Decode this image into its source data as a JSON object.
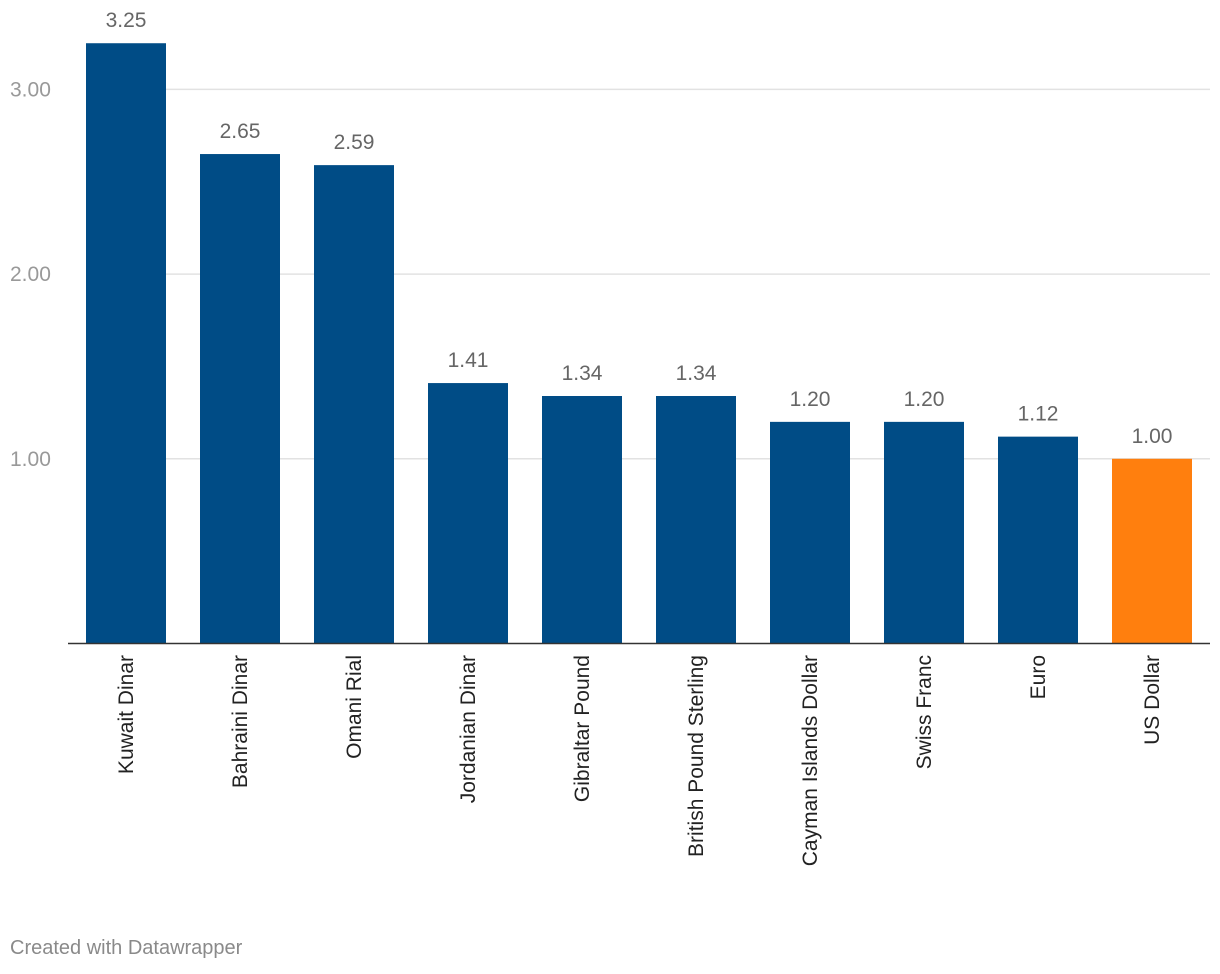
{
  "chart_data": {
    "type": "bar",
    "title": "",
    "xlabel": "",
    "ylabel": "",
    "categories": [
      "Kuwait Dinar",
      "Bahraini Dinar",
      "Omani Rial",
      "Jordanian Dinar",
      "Gibraltar Pound",
      "British Pound Sterling",
      "Cayman Islands Dollar",
      "Swiss Franc",
      "Euro",
      "US Dollar"
    ],
    "values": [
      3.25,
      2.65,
      2.59,
      1.41,
      1.34,
      1.34,
      1.2,
      1.2,
      1.12,
      1.0
    ],
    "value_labels": [
      "3.25",
      "2.65",
      "2.59",
      "1.41",
      "1.34",
      "1.34",
      "1.20",
      "1.20",
      "1.12",
      "1.00"
    ],
    "yticks": [
      1,
      2,
      3
    ],
    "ytick_labels": [
      "1.00",
      "2.00",
      "3.00"
    ],
    "ylim": [
      0,
      3.25
    ],
    "grid": true,
    "colors": {
      "default": "#004c86",
      "highlight": "#ff7f0e",
      "highlight_index": 9
    }
  },
  "footer": {
    "credit": "Created with Datawrapper"
  }
}
